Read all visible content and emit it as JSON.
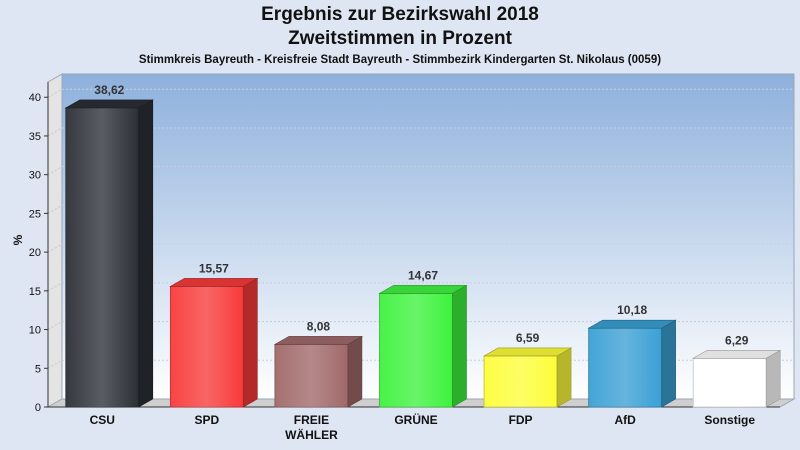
{
  "chart_data": {
    "type": "bar",
    "title": "Ergebnis zur Bezirkswahl 2018",
    "title2": "Zweitstimmen in Prozent",
    "subtitle": "Stimmkreis Bayreuth - Kreisfreie Stadt Bayreuth - Stimmbezirk Kindergarten St. Nikolaus (0059)",
    "ylabel": "%",
    "xlabel": "",
    "ylim": [
      0,
      43
    ],
    "yticks": [
      0,
      5,
      10,
      15,
      20,
      25,
      30,
      35,
      40
    ],
    "grid": true,
    "categories": [
      {
        "label": "CSU",
        "label2": ""
      },
      {
        "label": "SPD",
        "label2": ""
      },
      {
        "label": "FREIE",
        "label2": "WÄHLER"
      },
      {
        "label": "GRÜNE",
        "label2": ""
      },
      {
        "label": "FDP",
        "label2": ""
      },
      {
        "label": "AfD",
        "label2": ""
      },
      {
        "label": "Sonstige",
        "label2": ""
      }
    ],
    "values": [
      38.62,
      15.57,
      8.08,
      14.67,
      6.59,
      10.18,
      6.29
    ],
    "value_labels": [
      "38,62",
      "15,57",
      "8,08",
      "14,67",
      "6,59",
      "10,18",
      "6,29"
    ],
    "colors": [
      "#2b2f36",
      "#f83a3a",
      "#a06868",
      "#3ef23e",
      "#fdfd3a",
      "#3aa0d4",
      "#ffffff"
    ]
  }
}
